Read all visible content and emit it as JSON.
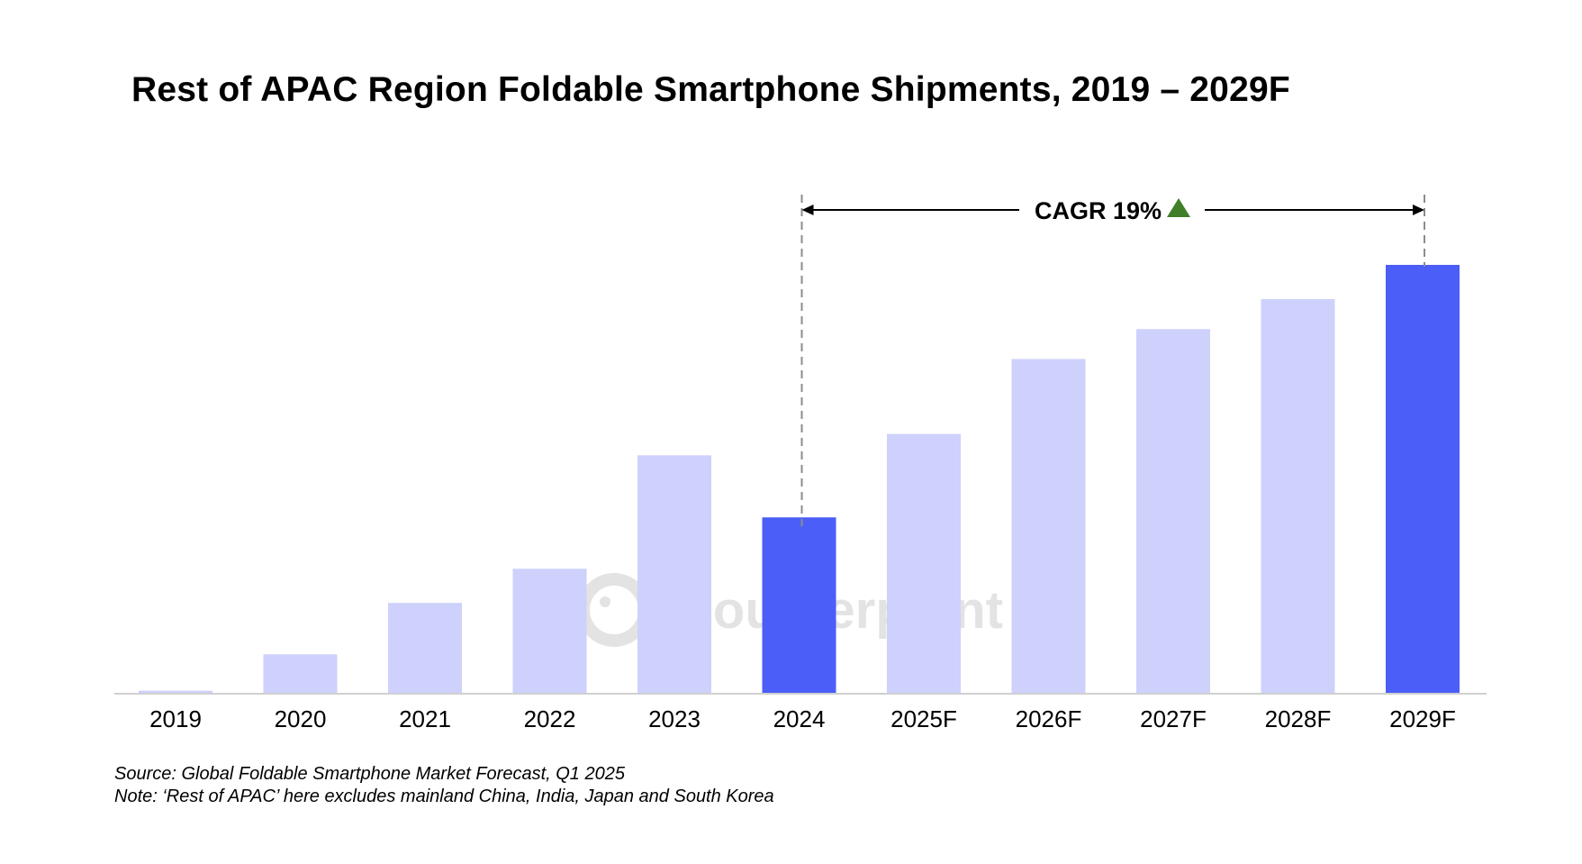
{
  "title": "Rest of APAC Region Foldable Smartphone Shipments, 2019 – 2029F",
  "cagr_label": "CAGR 19%",
  "watermark": "Counterpoint",
  "source": "Source: Global Foldable Smartphone Market Forecast, Q1 2025",
  "note": "Note: ‘Rest of APAC’ here excludes mainland China, India, Japan and South Korea",
  "colors": {
    "bar_default": "#cdd1fb",
    "bar_highlight": "#4b5ef7",
    "cagr_arrow": "#3f7f2a",
    "axis": "#d0d0d0",
    "watermark": "#dadada"
  },
  "chart_data": {
    "type": "bar",
    "title": "Rest of APAC Region Foldable Smartphone Shipments, 2019 – 2029F",
    "xlabel": "",
    "ylabel": "",
    "ylim": [
      0,
      100
    ],
    "categories": [
      "2019",
      "2020",
      "2021",
      "2022",
      "2023",
      "2024",
      "2025F",
      "2026F",
      "2027F",
      "2028F",
      "2029F"
    ],
    "values": [
      0.5,
      9,
      21,
      29,
      55.5,
      41,
      60.5,
      78,
      85,
      92,
      100
    ],
    "highlighted": [
      "2024",
      "2029F"
    ],
    "value_axis_shown": false,
    "grid": false,
    "legend": "none",
    "annotations": [
      {
        "text": "CAGR 19%",
        "from": "2024",
        "to": "2029F",
        "direction": "up"
      }
    ]
  }
}
